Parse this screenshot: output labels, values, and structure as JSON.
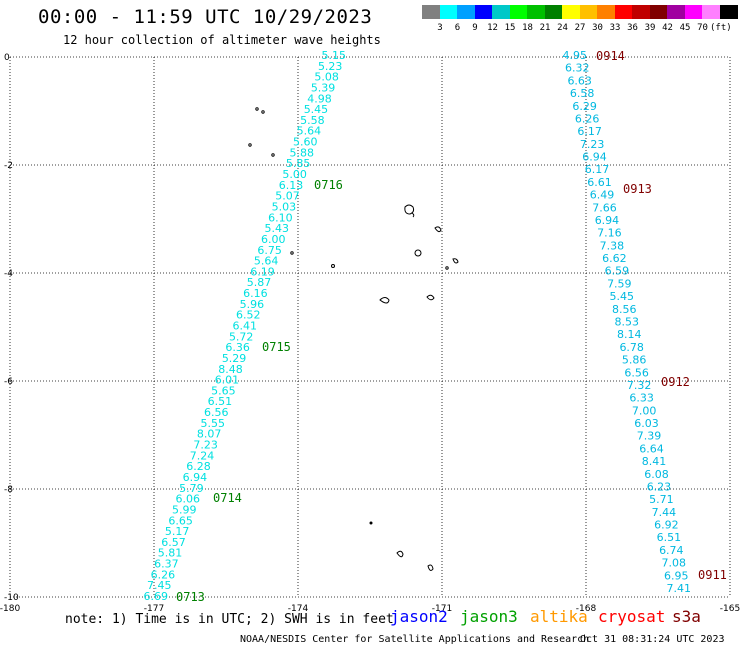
{
  "header": {
    "title": "00:00 - 11:59 UTC 10/29/2023",
    "subtitle": "12 hour collection of altimeter wave heights"
  },
  "legend": {
    "colors": [
      "#808080",
      "#00ffff",
      "#00a0ff",
      "#0000ff",
      "#00c8c8",
      "#00ff00",
      "#00c000",
      "#008000",
      "#ffff00",
      "#ffc000",
      "#ff8000",
      "#ff0000",
      "#c00000",
      "#800000",
      "#a000a0",
      "#ff00ff",
      "#ff80ff",
      "#000000"
    ],
    "labels": [
      "3",
      "6",
      "9",
      "12",
      "15",
      "18",
      "21",
      "24",
      "27",
      "30",
      "33",
      "36",
      "39",
      "42",
      "45",
      "70",
      "(ft)"
    ]
  },
  "axes": {
    "x_ticks": [
      "-180",
      "-177",
      "-174",
      "-171",
      "-168",
      "-165"
    ],
    "y_ticks": [
      "0",
      "-2",
      "-4",
      "-6",
      "-8",
      "-10"
    ]
  },
  "tracks": [
    {
      "color": "#00e0e0",
      "values": [
        "5.15",
        "5.23",
        "5.08",
        "5.39",
        "4.98",
        "5.45",
        "5.58",
        "5.64",
        "5.60",
        "5.88",
        "5.85",
        "5.00",
        "6.13",
        "5.07",
        "5.03",
        "6.10",
        "5.43",
        "6.00",
        "6.75",
        "5.64",
        "6.19",
        "5.87",
        "6.16",
        "5.96",
        "6.52",
        "6.41",
        "5.72",
        "6.36",
        "5.29",
        "8.48",
        "6.01",
        "5.65",
        "6.51",
        "6.56",
        "5.55",
        "8.07",
        "7.23",
        "7.24",
        "6.28",
        "6.94",
        "5.79",
        "6.06",
        "5.99",
        "6.65",
        "5.17",
        "6.57",
        "5.81",
        "6.37",
        "6.26",
        "7.45",
        "6.69"
      ]
    },
    {
      "color": "#00b8e0",
      "values": [
        "4.95",
        "6.32",
        "6.63",
        "6.58",
        "6.29",
        "6.26",
        "6.17",
        "7.23",
        "6.94",
        "6.17",
        "6.61",
        "6.49",
        "7.66",
        "6.94",
        "7.16",
        "7.38",
        "6.62",
        "6.59",
        "7.59",
        "5.45",
        "8.56",
        "8.53",
        "8.14",
        "6.78",
        "5.86",
        "6.56",
        "7.32",
        "6.33",
        "7.00",
        "6.03",
        "7.39",
        "6.64",
        "8.41",
        "6.08",
        "6.23",
        "5.71",
        "7.44",
        "6.92",
        "6.51",
        "6.74",
        "7.08",
        "6.95",
        "7.41"
      ]
    }
  ],
  "times": {
    "left": [
      "0716",
      "0715",
      "0714",
      "0713"
    ],
    "right": [
      "0914",
      "0913",
      "0912",
      "0911"
    ]
  },
  "note": "note: 1) Time is in UTC; 2) SWH is in feet",
  "satellites": [
    {
      "name": "jason2",
      "color": "#0000ff"
    },
    {
      "name": "jason3",
      "color": "#00a000"
    },
    {
      "name": "altika",
      "color": "#ff9900"
    },
    {
      "name": "cryosat",
      "color": "#ff0000"
    },
    {
      "name": "s3a",
      "color": "#800000"
    }
  ],
  "footer": {
    "credit": "NOAA/NESDIS Center for Satellite Applications and Research",
    "timestamp": "Oct 31 08:31:24 UTC 2023"
  }
}
